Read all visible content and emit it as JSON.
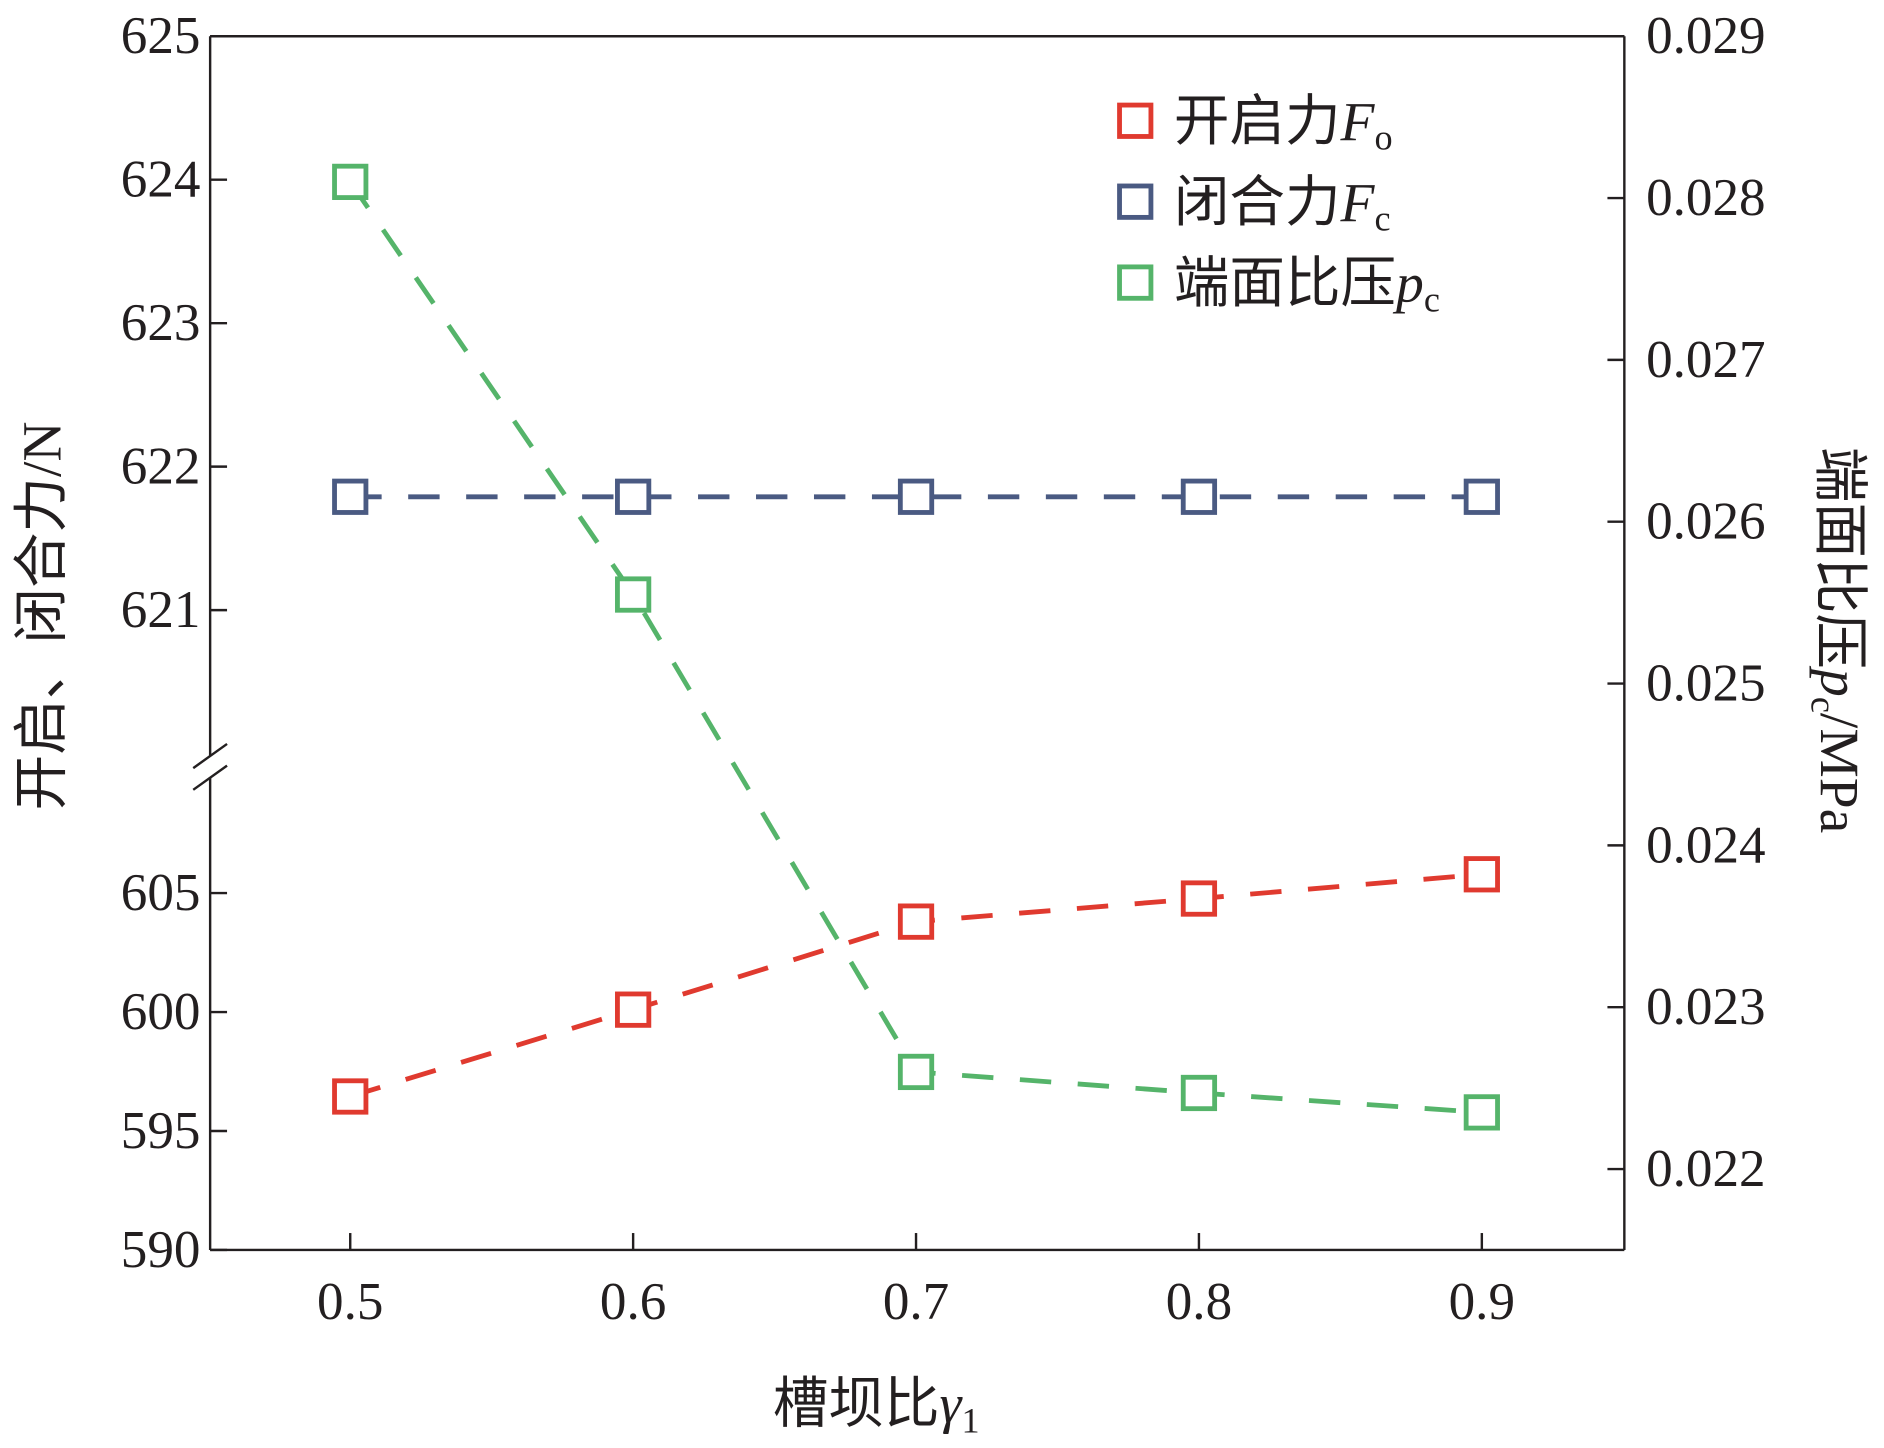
{
  "chart_data": {
    "type": "line",
    "xlabel": "槽坝比",
    "xlabel_symbol": "γ",
    "xlabel_sub": "1",
    "ylabel_left": "开启、闭合力/N",
    "ylabel_right_prefix": "端面比压",
    "ylabel_right_symbol": "p",
    "ylabel_right_sub": "c",
    "ylabel_right_unit": "/MPa",
    "x": [
      0.5,
      0.6,
      0.7,
      0.8,
      0.9
    ],
    "x_ticks": [
      "0.5",
      "0.6",
      "0.7",
      "0.8",
      "0.9"
    ],
    "xlim": [
      0.45,
      0.95
    ],
    "y_left_upper_ticks": [
      "621",
      "622",
      "623",
      "624",
      "625"
    ],
    "y_left_lower_ticks": [
      "590",
      "595",
      "600",
      "605"
    ],
    "y_left_upper_range": [
      620.0,
      625
    ],
    "y_left_lower_range": [
      590,
      608
    ],
    "y_left_broken": true,
    "y_right_ticks": [
      "0.022",
      "0.023",
      "0.024",
      "0.025",
      "0.026",
      "0.027",
      "0.028",
      "0.029"
    ],
    "y_right_range": [
      0.0215,
      0.029
    ],
    "legend_position": "top-right",
    "series": [
      {
        "name": "开启力",
        "symbol": "F",
        "sub": "o",
        "axis": "left",
        "color": "#e03a2f",
        "values": [
          596.45,
          600.1,
          603.8,
          604.77,
          605.79
        ]
      },
      {
        "name": "闭合力",
        "symbol": "F",
        "sub": "c",
        "axis": "left",
        "color": "#4a5a82",
        "values": [
          621.79,
          621.79,
          621.79,
          621.79,
          621.79
        ]
      },
      {
        "name": "端面比压",
        "symbol": "p",
        "sub": "c",
        "axis": "right",
        "color": "#55b46a",
        "values": [
          0.0281,
          0.02555,
          0.0226,
          0.02247,
          0.02235
        ]
      }
    ]
  }
}
